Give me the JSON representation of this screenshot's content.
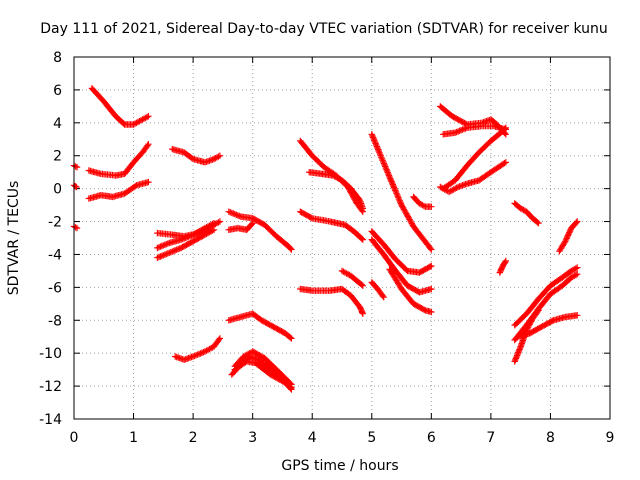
{
  "chart_data": {
    "type": "scatter",
    "title": "Day 111 of 2021, Sidereal Day-to-day VTEC variation (SDTVAR) for receiver kunu",
    "xlabel": "GPS time / hours",
    "ylabel": "SDTVAR / TECUs",
    "xlim": [
      0,
      9
    ],
    "ylim": [
      -14,
      8
    ],
    "xticks": [
      "0",
      "1",
      "2",
      "3",
      "4",
      "5",
      "6",
      "7",
      "8",
      "9"
    ],
    "yticks": [
      "-14",
      "-12",
      "-10",
      "-8",
      "-6",
      "-4",
      "-2",
      "0",
      "2",
      "4",
      "6",
      "8"
    ],
    "grid": true,
    "marker": "plus",
    "color": "#ff0000",
    "series": [
      {
        "name": "a1",
        "points": [
          [
            0.0,
            1.4
          ],
          [
            0.05,
            1.3
          ]
        ]
      },
      {
        "name": "a2",
        "points": [
          [
            0.0,
            0.2
          ],
          [
            0.04,
            0.1
          ]
        ]
      },
      {
        "name": "a3",
        "points": [
          [
            0.0,
            -2.3
          ],
          [
            0.05,
            -2.4
          ]
        ]
      },
      {
        "name": "b1",
        "points": [
          [
            0.3,
            6.1
          ],
          [
            0.5,
            5.3
          ],
          [
            0.7,
            4.4
          ],
          [
            0.85,
            3.9
          ],
          [
            1.0,
            3.9
          ],
          [
            1.15,
            4.2
          ],
          [
            1.25,
            4.4
          ]
        ]
      },
      {
        "name": "b2",
        "points": [
          [
            0.25,
            1.1
          ],
          [
            0.45,
            0.9
          ],
          [
            0.7,
            0.8
          ],
          [
            0.85,
            0.9
          ],
          [
            1.0,
            1.6
          ],
          [
            1.15,
            2.2
          ],
          [
            1.25,
            2.7
          ]
        ]
      },
      {
        "name": "b3",
        "points": [
          [
            0.25,
            -0.6
          ],
          [
            0.45,
            -0.4
          ],
          [
            0.65,
            -0.5
          ],
          [
            0.85,
            -0.3
          ],
          [
            1.05,
            0.2
          ],
          [
            1.25,
            0.4
          ]
        ]
      },
      {
        "name": "c1",
        "points": [
          [
            1.65,
            2.4
          ],
          [
            1.85,
            2.2
          ],
          [
            2.0,
            1.8
          ],
          [
            2.2,
            1.6
          ],
          [
            2.35,
            1.8
          ],
          [
            2.45,
            2.0
          ]
        ]
      },
      {
        "name": "c2",
        "points": [
          [
            1.4,
            -2.7
          ],
          [
            1.65,
            -2.8
          ],
          [
            1.85,
            -2.9
          ],
          [
            2.1,
            -2.7
          ],
          [
            2.35,
            -2.2
          ],
          [
            2.45,
            -2.0
          ]
        ]
      },
      {
        "name": "c3",
        "points": [
          [
            1.4,
            -3.6
          ],
          [
            1.6,
            -3.3
          ],
          [
            1.8,
            -3.1
          ],
          [
            2.0,
            -2.8
          ],
          [
            2.2,
            -2.4
          ],
          [
            2.35,
            -2.1
          ]
        ]
      },
      {
        "name": "c4",
        "points": [
          [
            1.4,
            -4.2
          ],
          [
            1.6,
            -3.9
          ],
          [
            1.8,
            -3.6
          ],
          [
            2.0,
            -3.2
          ],
          [
            2.2,
            -2.8
          ],
          [
            2.35,
            -2.5
          ]
        ]
      },
      {
        "name": "c5",
        "points": [
          [
            1.7,
            -10.2
          ],
          [
            1.85,
            -10.4
          ],
          [
            2.0,
            -10.2
          ],
          [
            2.2,
            -9.9
          ],
          [
            2.35,
            -9.6
          ],
          [
            2.45,
            -9.1
          ]
        ]
      },
      {
        "name": "d1",
        "points": [
          [
            2.6,
            -1.4
          ],
          [
            2.8,
            -1.7
          ],
          [
            3.0,
            -1.8
          ],
          [
            3.2,
            -2.2
          ],
          [
            3.4,
            -2.9
          ],
          [
            3.6,
            -3.5
          ],
          [
            3.65,
            -3.7
          ]
        ]
      },
      {
        "name": "d2",
        "points": [
          [
            2.6,
            -2.5
          ],
          [
            2.75,
            -2.4
          ],
          [
            2.9,
            -2.5
          ],
          [
            3.0,
            -2.1
          ]
        ]
      },
      {
        "name": "d3",
        "points": [
          [
            2.6,
            -8.0
          ],
          [
            2.8,
            -7.8
          ],
          [
            3.0,
            -7.6
          ],
          [
            3.15,
            -8.0
          ],
          [
            3.35,
            -8.4
          ],
          [
            3.55,
            -8.8
          ],
          [
            3.65,
            -9.1
          ]
        ]
      },
      {
        "name": "d4",
        "points": [
          [
            2.65,
            -11.3
          ],
          [
            2.8,
            -10.7
          ],
          [
            2.95,
            -10.2
          ],
          [
            3.1,
            -10.4
          ],
          [
            3.3,
            -11.0
          ],
          [
            3.5,
            -11.6
          ],
          [
            3.65,
            -12.1
          ]
        ]
      },
      {
        "name": "d5",
        "points": [
          [
            2.7,
            -10.8
          ],
          [
            2.85,
            -10.2
          ],
          [
            3.0,
            -9.9
          ],
          [
            3.2,
            -10.3
          ],
          [
            3.4,
            -11.0
          ],
          [
            3.65,
            -11.9
          ]
        ]
      },
      {
        "name": "d6",
        "points": [
          [
            2.7,
            -11.0
          ],
          [
            2.9,
            -10.5
          ],
          [
            3.05,
            -10.6
          ],
          [
            3.3,
            -11.3
          ],
          [
            3.55,
            -11.8
          ],
          [
            3.65,
            -12.2
          ]
        ]
      },
      {
        "name": "e1",
        "points": [
          [
            3.8,
            2.9
          ],
          [
            4.0,
            2.0
          ],
          [
            4.2,
            1.3
          ],
          [
            4.4,
            0.8
          ],
          [
            4.6,
            0.1
          ],
          [
            4.75,
            -0.9
          ],
          [
            4.85,
            -1.4
          ]
        ]
      },
      {
        "name": "e2",
        "points": [
          [
            3.95,
            1.0
          ],
          [
            4.15,
            0.9
          ],
          [
            4.35,
            0.8
          ],
          [
            4.5,
            0.5
          ],
          [
            4.65,
            0.0
          ],
          [
            4.8,
            -0.7
          ],
          [
            4.85,
            -1.2
          ]
        ]
      },
      {
        "name": "e3",
        "points": [
          [
            3.8,
            -1.4
          ],
          [
            4.0,
            -1.8
          ],
          [
            4.3,
            -2.0
          ],
          [
            4.55,
            -2.2
          ],
          [
            4.7,
            -2.6
          ],
          [
            4.85,
            -3.1
          ]
        ]
      },
      {
        "name": "e4",
        "points": [
          [
            3.8,
            -6.1
          ],
          [
            4.0,
            -6.2
          ],
          [
            4.3,
            -6.2
          ],
          [
            4.5,
            -6.1
          ],
          [
            4.65,
            -6.5
          ],
          [
            4.8,
            -7.2
          ],
          [
            4.85,
            -7.6
          ]
        ]
      },
      {
        "name": "e5",
        "points": [
          [
            4.5,
            -5.0
          ],
          [
            4.65,
            -5.3
          ],
          [
            4.75,
            -5.6
          ],
          [
            4.85,
            -5.9
          ]
        ]
      },
      {
        "name": "f1",
        "points": [
          [
            5.0,
            3.3
          ],
          [
            5.15,
            2.0
          ],
          [
            5.3,
            0.7
          ],
          [
            5.5,
            -1.0
          ],
          [
            5.7,
            -2.3
          ],
          [
            5.85,
            -3.0
          ],
          [
            6.0,
            -3.7
          ]
        ]
      },
      {
        "name": "f2",
        "points": [
          [
            5.0,
            -2.6
          ],
          [
            5.2,
            -3.4
          ],
          [
            5.4,
            -4.3
          ],
          [
            5.6,
            -5.0
          ],
          [
            5.8,
            -5.1
          ],
          [
            6.0,
            -4.7
          ]
        ]
      },
      {
        "name": "f3",
        "points": [
          [
            5.0,
            -3.1
          ],
          [
            5.2,
            -4.0
          ],
          [
            5.4,
            -5.0
          ],
          [
            5.6,
            -5.9
          ],
          [
            5.8,
            -6.3
          ],
          [
            6.0,
            -6.1
          ]
        ]
      },
      {
        "name": "f4",
        "points": [
          [
            5.3,
            -4.9
          ],
          [
            5.5,
            -6.1
          ],
          [
            5.7,
            -7.0
          ],
          [
            5.9,
            -7.4
          ],
          [
            6.0,
            -7.5
          ]
        ]
      },
      {
        "name": "f5",
        "points": [
          [
            5.0,
            -5.7
          ],
          [
            5.1,
            -6.1
          ],
          [
            5.2,
            -6.6
          ]
        ]
      },
      {
        "name": "f6",
        "points": [
          [
            5.7,
            -0.5
          ],
          [
            5.8,
            -0.9
          ],
          [
            5.9,
            -1.1
          ],
          [
            6.0,
            -1.1
          ]
        ]
      },
      {
        "name": "g1",
        "points": [
          [
            6.15,
            5.0
          ],
          [
            6.35,
            4.4
          ],
          [
            6.6,
            3.9
          ],
          [
            6.85,
            4.0
          ],
          [
            7.0,
            4.2
          ],
          [
            7.1,
            3.9
          ],
          [
            7.25,
            3.3
          ]
        ]
      },
      {
        "name": "g2",
        "points": [
          [
            6.2,
            3.3
          ],
          [
            6.4,
            3.4
          ],
          [
            6.6,
            3.7
          ],
          [
            6.85,
            3.8
          ],
          [
            7.05,
            3.8
          ],
          [
            7.25,
            3.6
          ]
        ]
      },
      {
        "name": "g3",
        "points": [
          [
            6.2,
            0.0
          ],
          [
            6.4,
            0.5
          ],
          [
            6.6,
            1.4
          ],
          [
            6.8,
            2.2
          ],
          [
            7.0,
            2.9
          ],
          [
            7.2,
            3.5
          ],
          [
            7.25,
            3.7
          ]
        ]
      },
      {
        "name": "g4",
        "points": [
          [
            6.15,
            0.1
          ],
          [
            6.3,
            -0.2
          ],
          [
            6.45,
            0.1
          ],
          [
            6.6,
            0.3
          ],
          [
            6.8,
            0.5
          ],
          [
            7.0,
            1.0
          ],
          [
            7.25,
            1.6
          ]
        ]
      },
      {
        "name": "g5",
        "points": [
          [
            7.15,
            -5.1
          ],
          [
            7.2,
            -4.7
          ],
          [
            7.25,
            -4.4
          ]
        ]
      },
      {
        "name": "h1",
        "points": [
          [
            7.4,
            -0.9
          ],
          [
            7.5,
            -1.2
          ],
          [
            7.6,
            -1.4
          ],
          [
            7.7,
            -1.8
          ],
          [
            7.8,
            -2.1
          ]
        ]
      },
      {
        "name": "h2",
        "points": [
          [
            7.4,
            -8.3
          ],
          [
            7.6,
            -7.6
          ],
          [
            7.8,
            -6.7
          ],
          [
            8.0,
            -5.9
          ],
          [
            8.2,
            -5.4
          ],
          [
            8.35,
            -5.0
          ],
          [
            8.45,
            -4.8
          ]
        ]
      },
      {
        "name": "h3",
        "points": [
          [
            7.4,
            -9.2
          ],
          [
            7.6,
            -8.3
          ],
          [
            7.8,
            -7.3
          ],
          [
            8.0,
            -6.4
          ],
          [
            8.2,
            -5.9
          ],
          [
            8.35,
            -5.4
          ],
          [
            8.45,
            -5.2
          ]
        ]
      },
      {
        "name": "h4",
        "points": [
          [
            7.45,
            -9.0
          ],
          [
            7.65,
            -8.8
          ],
          [
            7.85,
            -8.4
          ],
          [
            8.05,
            -8.0
          ],
          [
            8.25,
            -7.8
          ],
          [
            8.45,
            -7.7
          ]
        ]
      },
      {
        "name": "h5",
        "points": [
          [
            7.4,
            -10.5
          ],
          [
            7.5,
            -9.6
          ],
          [
            7.6,
            -8.6
          ],
          [
            7.7,
            -7.9
          ],
          [
            7.8,
            -7.4
          ]
        ]
      },
      {
        "name": "h6",
        "points": [
          [
            8.15,
            -3.8
          ],
          [
            8.25,
            -3.2
          ],
          [
            8.35,
            -2.4
          ],
          [
            8.45,
            -2.0
          ]
        ]
      }
    ]
  }
}
